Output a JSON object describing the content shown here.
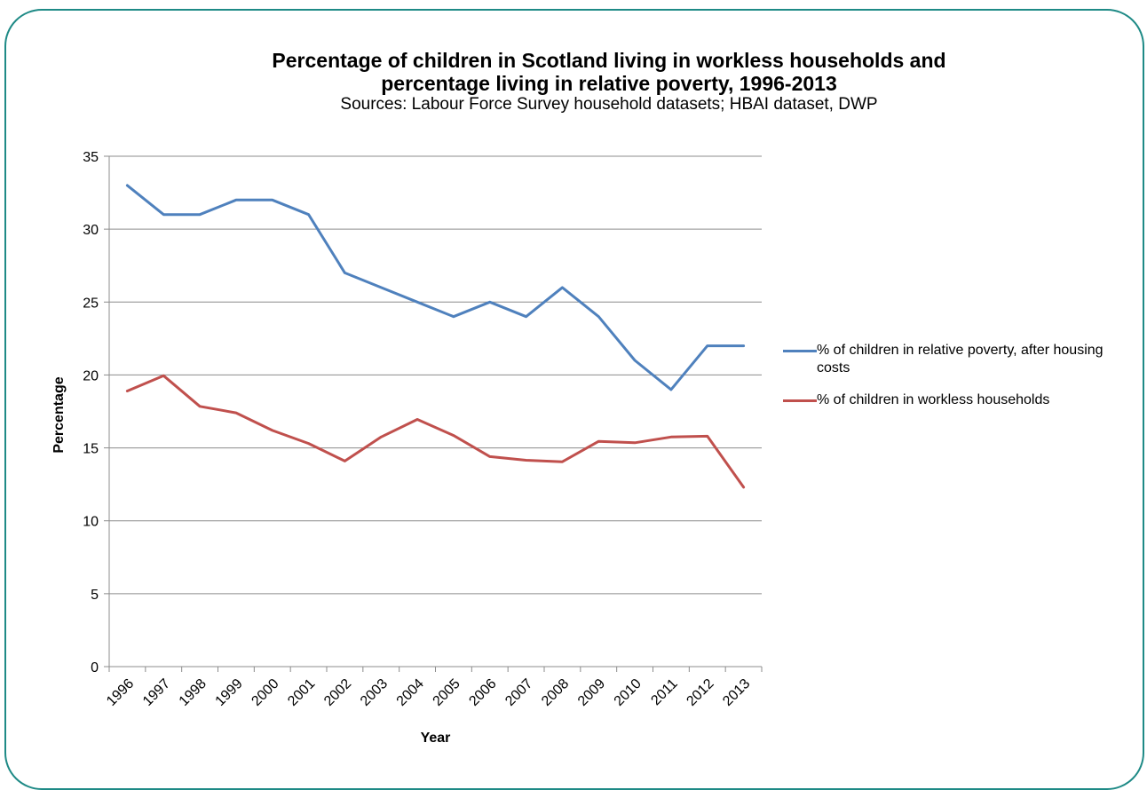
{
  "chart_data": {
    "type": "line",
    "title_line1": "Percentage of children in Scotland living in workless households and",
    "title_line2": "percentage living in relative poverty, 1996-2013",
    "subtitle": "Sources: Labour Force Survey household datasets;  HBAI dataset, DWP",
    "xlabel": "Year",
    "ylabel": "Percentage",
    "ylim": [
      0,
      35
    ],
    "yticks": [
      "0",
      "5",
      "10",
      "15",
      "20",
      "25",
      "30",
      "35"
    ],
    "grid": true,
    "legend_position": "right",
    "categories": [
      "1996",
      "1997",
      "1998",
      "1999",
      "2000",
      "2001",
      "2002",
      "2003",
      "2004",
      "2005",
      "2006",
      "2007",
      "2008",
      "2009",
      "2010",
      "2011",
      "2012",
      "2013"
    ],
    "series": [
      {
        "name": "% of children in relative poverty, after housing costs",
        "color": "#4f81bd",
        "values": [
          33,
          31,
          31,
          32,
          32,
          31,
          27,
          26,
          25,
          24,
          25,
          24,
          26,
          24,
          21,
          19,
          22,
          22
        ]
      },
      {
        "name": "% of children in workless households",
        "color": "#c0504d",
        "values": [
          18.9,
          19.95,
          17.85,
          17.4,
          16.2,
          15.3,
          14.1,
          15.75,
          16.95,
          15.85,
          14.4,
          14.15,
          14.05,
          15.45,
          15.35,
          15.75,
          15.8,
          12.3
        ]
      }
    ]
  }
}
